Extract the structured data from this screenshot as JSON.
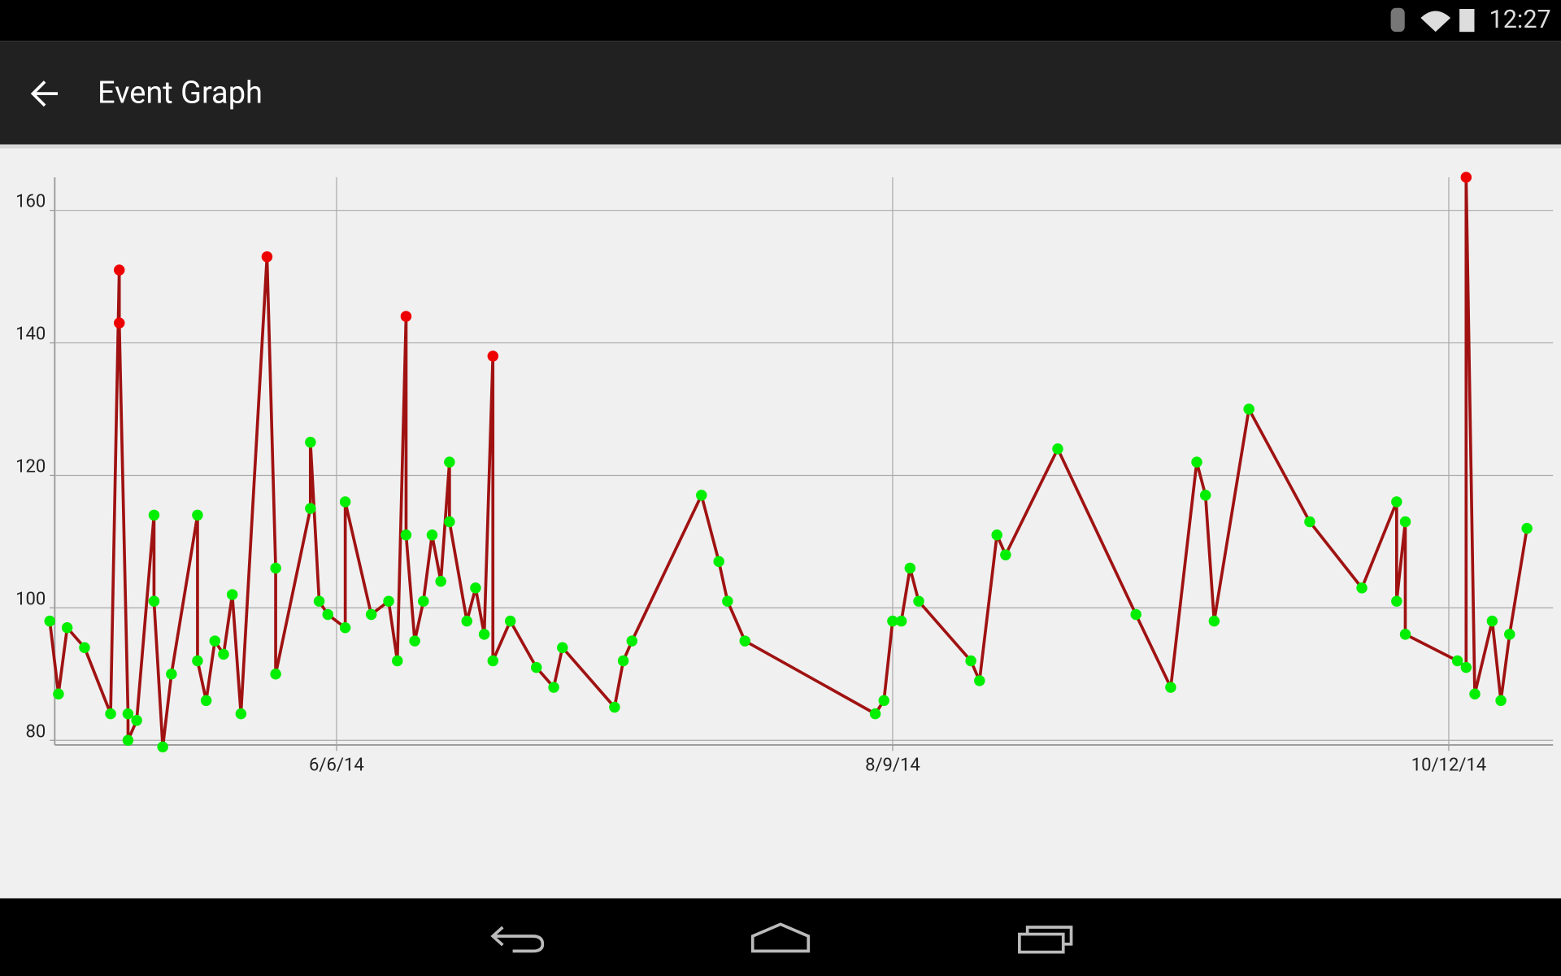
{
  "status": {
    "time": "12:27"
  },
  "header": {
    "title": "Event Graph"
  },
  "chart_data": {
    "type": "line",
    "x": [
      "2014-05-04",
      "2014-05-05",
      "2014-05-06",
      "2014-05-08",
      "2014-05-11",
      "2014-05-12",
      "2014-05-12",
      "2014-05-13",
      "2014-05-13",
      "2014-05-14",
      "2014-05-16",
      "2014-05-16",
      "2014-05-17",
      "2014-05-18",
      "2014-05-21",
      "2014-05-21",
      "2014-05-22",
      "2014-05-23",
      "2014-05-24",
      "2014-05-25",
      "2014-05-26",
      "2014-05-29",
      "2014-05-30",
      "2014-05-30",
      "2014-06-03",
      "2014-06-03",
      "2014-06-04",
      "2014-06-05",
      "2014-06-07",
      "2014-06-07",
      "2014-06-10",
      "2014-06-12",
      "2014-06-13",
      "2014-06-14",
      "2014-06-14",
      "2014-06-15",
      "2014-06-16",
      "2014-06-17",
      "2014-06-18",
      "2014-06-19",
      "2014-06-19",
      "2014-06-21",
      "2014-06-22",
      "2014-06-23",
      "2014-06-24",
      "2014-06-24",
      "2014-06-26",
      "2014-06-29",
      "2014-07-01",
      "2014-07-02",
      "2014-07-08",
      "2014-07-09",
      "2014-07-10",
      "2014-07-18",
      "2014-07-20",
      "2014-07-21",
      "2014-07-23",
      "2014-08-07",
      "2014-08-08",
      "2014-08-09",
      "2014-08-10",
      "2014-08-11",
      "2014-08-12",
      "2014-08-18",
      "2014-08-19",
      "2014-08-21",
      "2014-08-22",
      "2014-08-28",
      "2014-09-06",
      "2014-09-10",
      "2014-09-13",
      "2014-09-14",
      "2014-09-15",
      "2014-09-19",
      "2014-09-26",
      "2014-10-02",
      "2014-10-06",
      "2014-10-06",
      "2014-10-07",
      "2014-10-07",
      "2014-10-13",
      "2014-10-14",
      "2014-10-14",
      "2014-10-15",
      "2014-10-17",
      "2014-10-18",
      "2014-10-19",
      "2014-10-21"
    ],
    "series": [
      {
        "color": "#a01212",
        "values": [
          98,
          87,
          97,
          94,
          84,
          151,
          143,
          84,
          80,
          83,
          114,
          101,
          79,
          90,
          114,
          92,
          86,
          95,
          93,
          102,
          84,
          153,
          106,
          90,
          115,
          125,
          101,
          99,
          97,
          116,
          99,
          101,
          92,
          144,
          111,
          95,
          101,
          111,
          104,
          122,
          113,
          98,
          103,
          96,
          138,
          92,
          98,
          91,
          88,
          94,
          85,
          92,
          95,
          117,
          107,
          101,
          95,
          84,
          86,
          98,
          98,
          106,
          101,
          92,
          89,
          111,
          108,
          124,
          99,
          88,
          122,
          117,
          98,
          130,
          113,
          103,
          116,
          101,
          113,
          96,
          92,
          91,
          165,
          87,
          98,
          86,
          96,
          112
        ],
        "marker_colors": [
          "#00ee00",
          "#00ee00",
          "#00ee00",
          "#00ee00",
          "#00ee00",
          "#ee0000",
          "#ee0000",
          "#00ee00",
          "#00ee00",
          "#00ee00",
          "#00ee00",
          "#00ee00",
          "#00ee00",
          "#00ee00",
          "#00ee00",
          "#00ee00",
          "#00ee00",
          "#00ee00",
          "#00ee00",
          "#00ee00",
          "#00ee00",
          "#ee0000",
          "#00ee00",
          "#00ee00",
          "#00ee00",
          "#00ee00",
          "#00ee00",
          "#00ee00",
          "#00ee00",
          "#00ee00",
          "#00ee00",
          "#00ee00",
          "#00ee00",
          "#ee0000",
          "#00ee00",
          "#00ee00",
          "#00ee00",
          "#00ee00",
          "#00ee00",
          "#00ee00",
          "#00ee00",
          "#00ee00",
          "#00ee00",
          "#00ee00",
          "#ee0000",
          "#00ee00",
          "#00ee00",
          "#00ee00",
          "#00ee00",
          "#00ee00",
          "#00ee00",
          "#00ee00",
          "#00ee00",
          "#00ee00",
          "#00ee00",
          "#00ee00",
          "#00ee00",
          "#00ee00",
          "#00ee00",
          "#00ee00",
          "#00ee00",
          "#00ee00",
          "#00ee00",
          "#00ee00",
          "#00ee00",
          "#00ee00",
          "#00ee00",
          "#00ee00",
          "#00ee00",
          "#00ee00",
          "#00ee00",
          "#00ee00",
          "#00ee00",
          "#00ee00",
          "#00ee00",
          "#00ee00",
          "#00ee00",
          "#00ee00",
          "#00ee00",
          "#00ee00",
          "#00ee00",
          "#00ee00",
          "#ee0000",
          "#00ee00",
          "#00ee00",
          "#00ee00",
          "#00ee00",
          "#00ee00"
        ]
      }
    ],
    "xlim": [
      "2014-05-04",
      "2014-10-24"
    ],
    "xticks": [
      {
        "value": "2014-06-06",
        "label": "6/6/14"
      },
      {
        "value": "2014-08-09",
        "label": "8/9/14"
      },
      {
        "value": "2014-10-12",
        "label": "10/12/14"
      }
    ],
    "ylim": [
      79,
      165
    ],
    "yticks": [
      80,
      100,
      120,
      140,
      160
    ],
    "grid": true
  }
}
